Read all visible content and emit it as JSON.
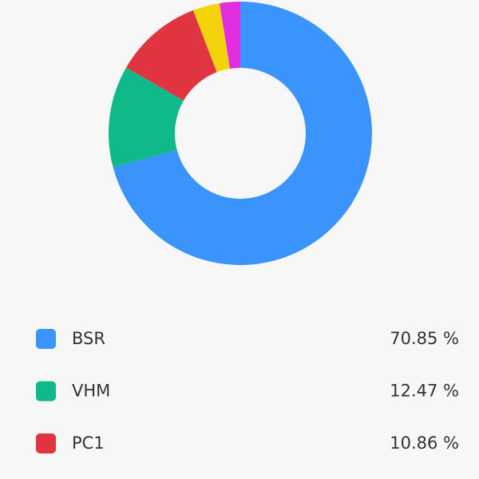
{
  "chart_data": {
    "type": "pie",
    "donut": true,
    "categories": [
      "BSR",
      "VHM",
      "PC1",
      null,
      null
    ],
    "values": [
      70.85,
      12.47,
      10.86,
      3.3,
      2.52
    ],
    "value_labels": [
      "70.85 %",
      "12.47 %",
      "10.86 %",
      null,
      null
    ],
    "colors": [
      "#3a94fb",
      "#10b98a",
      "#e03541",
      "#f3d40c",
      "#e02ee0"
    ]
  }
}
